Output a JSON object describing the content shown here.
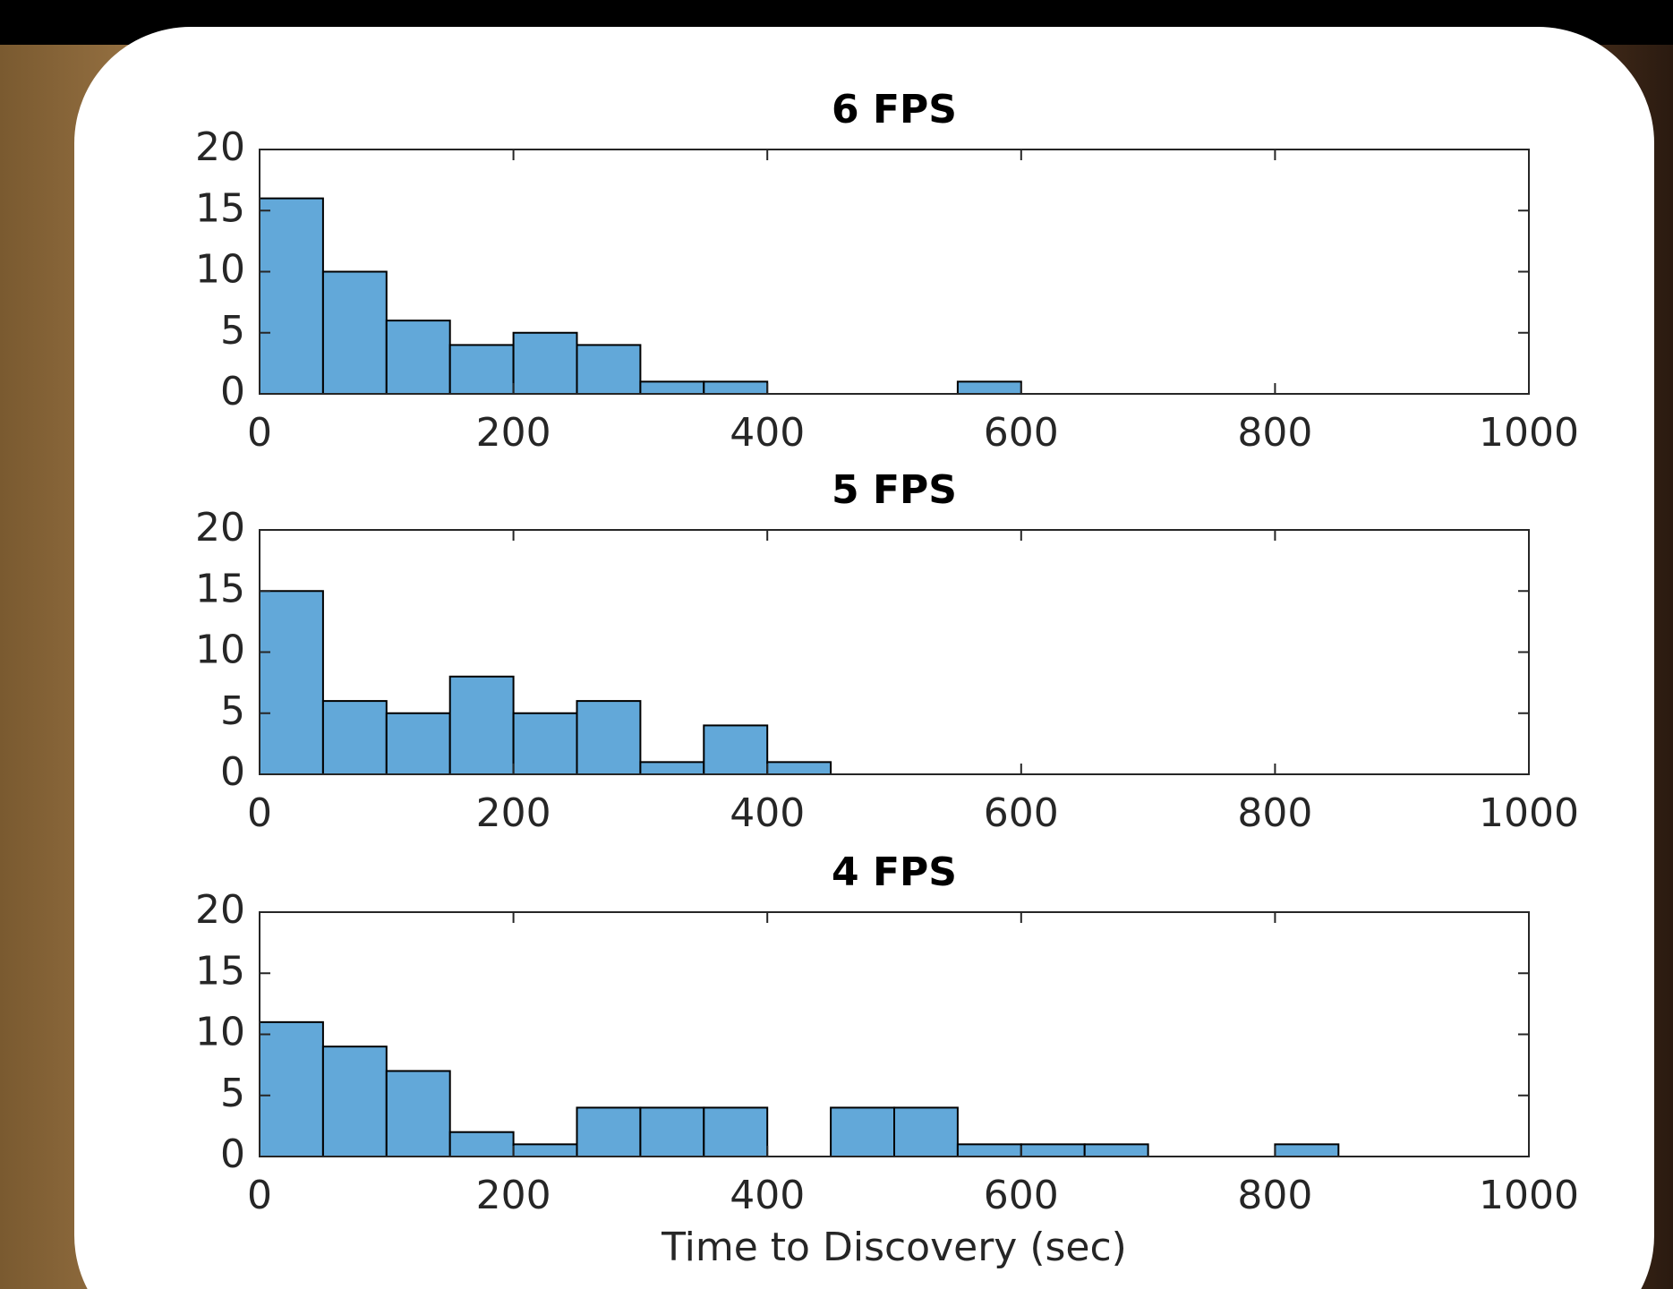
{
  "chart_data": [
    {
      "type": "histogram",
      "title": "6 FPS",
      "bins": [
        0,
        50,
        100,
        150,
        200,
        250,
        300,
        350,
        400,
        450,
        500,
        550,
        600,
        650,
        700,
        750,
        800,
        850,
        900,
        950,
        1000
      ],
      "values": [
        16,
        10,
        6,
        4,
        5,
        4,
        1,
        1,
        0,
        0,
        0,
        1,
        0,
        0,
        0,
        0,
        0,
        0,
        0,
        0
      ],
      "color": "#62a8d9",
      "xlim": [
        0,
        1000
      ],
      "ylim": [
        0,
        20
      ],
      "xticks": [
        0,
        200,
        400,
        600,
        800,
        1000
      ],
      "yticks": [
        0,
        5,
        10,
        15,
        20
      ]
    },
    {
      "type": "histogram",
      "title": "5 FPS",
      "bins": [
        0,
        50,
        100,
        150,
        200,
        250,
        300,
        350,
        400,
        450,
        500,
        550,
        600,
        650,
        700,
        750,
        800,
        850,
        900,
        950,
        1000
      ],
      "values": [
        15,
        6,
        5,
        8,
        5,
        6,
        1,
        4,
        1,
        0,
        0,
        0,
        0,
        0,
        0,
        0,
        0,
        0,
        0,
        0
      ],
      "color": "#62a8d9",
      "xlim": [
        0,
        1000
      ],
      "ylim": [
        0,
        20
      ],
      "xticks": [
        0,
        200,
        400,
        600,
        800,
        1000
      ],
      "yticks": [
        0,
        5,
        10,
        15,
        20
      ]
    },
    {
      "type": "histogram",
      "title": "4 FPS",
      "xlabel": "Time to Discovery (sec)",
      "bins": [
        0,
        50,
        100,
        150,
        200,
        250,
        300,
        350,
        400,
        450,
        500,
        550,
        600,
        650,
        700,
        750,
        800,
        850,
        900,
        950,
        1000
      ],
      "values": [
        11,
        9,
        7,
        2,
        1,
        4,
        4,
        4,
        0,
        4,
        4,
        1,
        1,
        1,
        0,
        0,
        1,
        0,
        0,
        0
      ],
      "color": "#62a8d9",
      "xlim": [
        0,
        1000
      ],
      "ylim": [
        0,
        20
      ],
      "xticks": [
        0,
        200,
        400,
        600,
        800,
        1000
      ],
      "yticks": [
        0,
        5,
        10,
        15,
        20
      ]
    }
  ]
}
